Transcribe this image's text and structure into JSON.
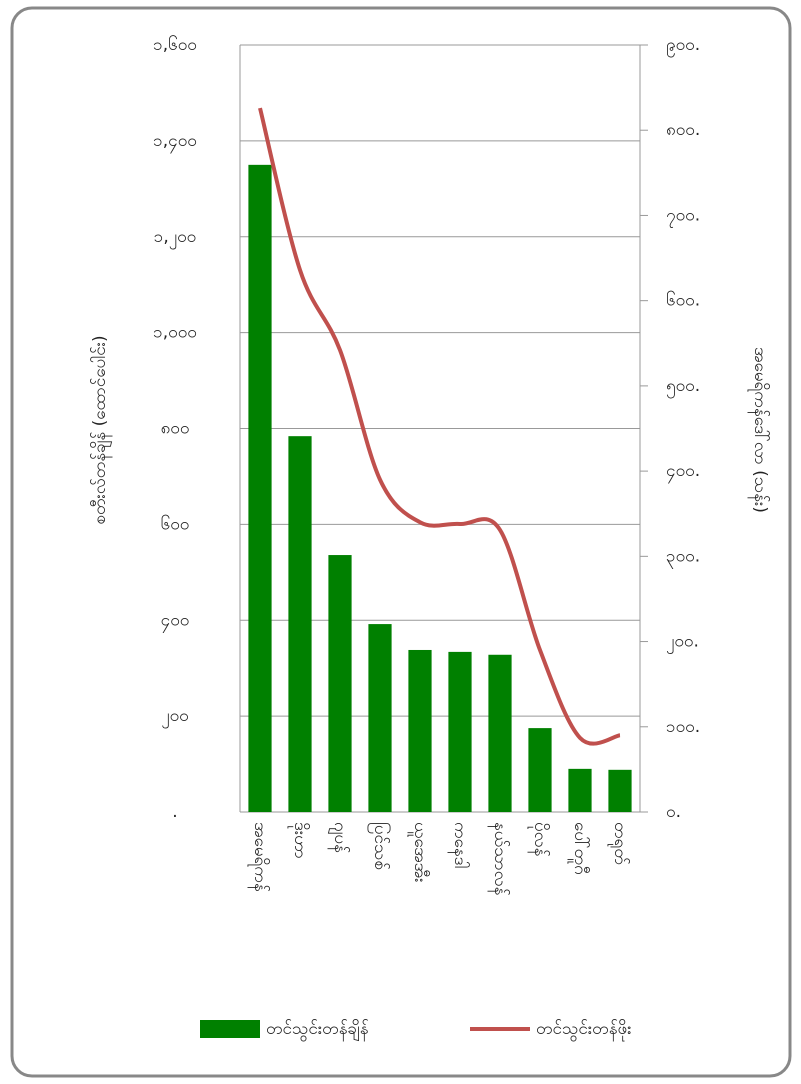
{
  "chart_data": {
    "type": "bar_line",
    "categories": [
      "အမေရိကန်",
      "ဒိုးဟာ",
      "ဂျပန်",
      "ပြင်သစ်",
      "ယူအေအီး",
      "ကနေဒါ",
      "နယ်သာလန်",
      "ပိုလန်",
      "ပေါ်တူဂီ",
      "တရုတ်"
    ],
    "series": [
      {
        "name": "တင်သွင်းတန်ချိန်",
        "color": "#008000",
        "type": "bar",
        "values": [
          1350,
          784,
          536,
          392,
          338,
          334,
          328,
          175,
          90,
          88
        ]
      },
      {
        "name": "တင်သွင်းတန်ဖိုး",
        "color": "#c0504d",
        "type": "line",
        "axis": "y2",
        "values": [
          826,
          636,
          542,
          390,
          340,
          338,
          331,
          190,
          87,
          90
        ]
      }
    ],
    "ylabel": "စတီးလ်တန်ချိန် (ထောင်ပေါင်း)",
    "y2label": "အမေရိကန်ဒေါ်လာ (သန်း)",
    "ylim": [
      0,
      1600
    ],
    "yticks": [
      {
        "value": 0,
        "label": "."
      },
      {
        "value": 200,
        "label": "၂၀၀"
      },
      {
        "value": 400,
        "label": "၄၀၀"
      },
      {
        "value": 600,
        "label": "၆၀၀"
      },
      {
        "value": 800,
        "label": "၈၀၀"
      },
      {
        "value": 1000,
        "label": "၁,၀၀၀"
      },
      {
        "value": 1200,
        "label": "၁,၂၀၀"
      },
      {
        "value": 1400,
        "label": "၁,၄၀၀"
      },
      {
        "value": 1600,
        "label": "၁,၆၀၀"
      }
    ],
    "y2lim": [
      0,
      900
    ],
    "y2ticks": [
      {
        "value": 0,
        "label": "၀."
      },
      {
        "value": 100,
        "label": "၁၀၀."
      },
      {
        "value": 200,
        "label": "၂၀၀."
      },
      {
        "value": 300,
        "label": "၃၀၀."
      },
      {
        "value": 400,
        "label": "၄၀၀."
      },
      {
        "value": 500,
        "label": "၅၀၀."
      },
      {
        "value": 600,
        "label": "၆၀၀."
      },
      {
        "value": 700,
        "label": "၇၀၀."
      },
      {
        "value": 800,
        "label": "၈၀၀."
      },
      {
        "value": 900,
        "label": "၉၀၀."
      }
    ],
    "grid": true,
    "legend": "bottom"
  }
}
